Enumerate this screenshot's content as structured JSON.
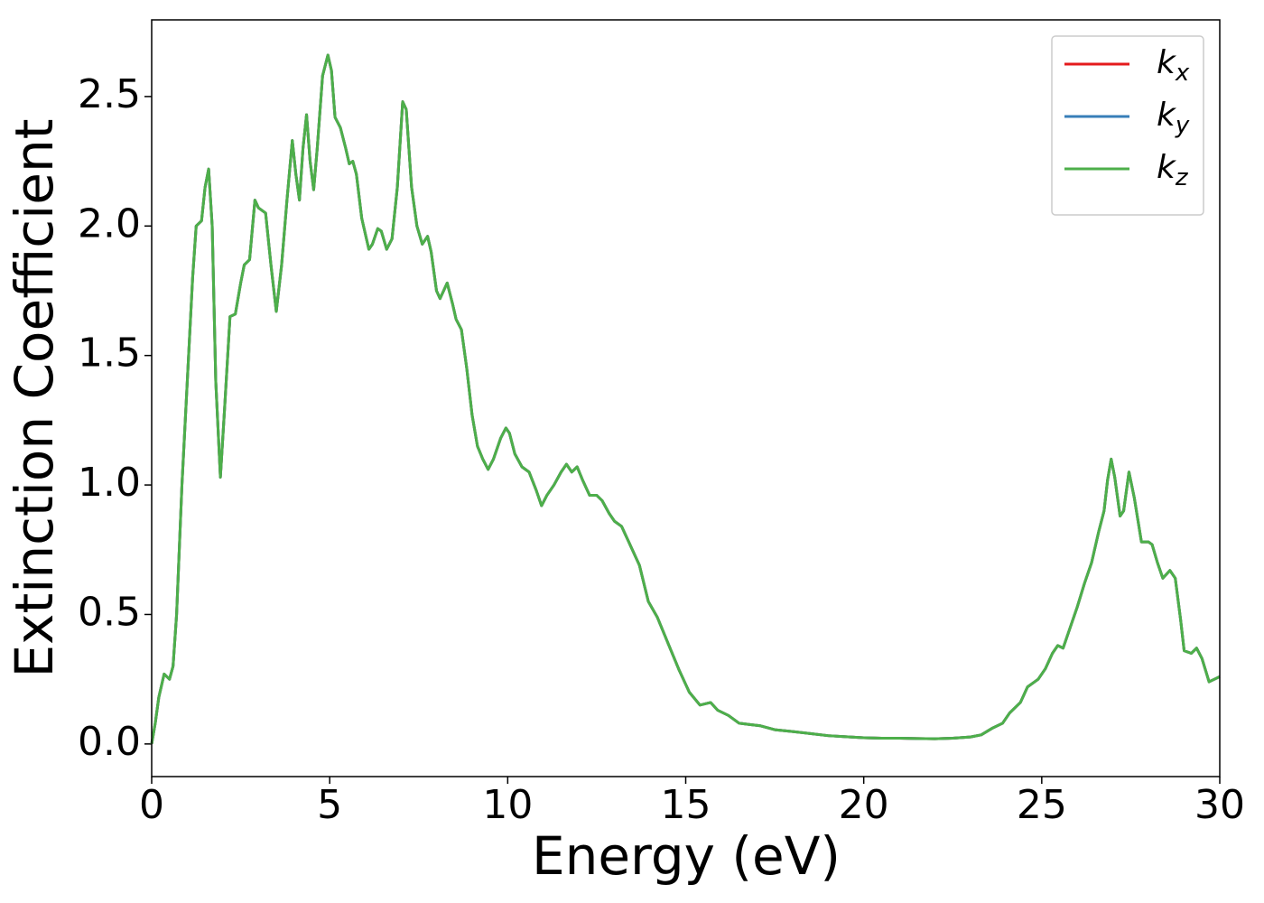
{
  "chart_data": {
    "type": "line",
    "xlabel": "Energy (eV)",
    "ylabel": "Extinction Coefficient",
    "x": [
      0,
      0.1,
      0.2,
      0.35,
      0.5,
      0.6,
      0.7,
      0.85,
      1.0,
      1.15,
      1.25,
      1.4,
      1.5,
      1.6,
      1.7,
      1.8,
      1.93,
      2.05,
      2.2,
      2.35,
      2.5,
      2.6,
      2.75,
      2.9,
      3.0,
      3.2,
      3.35,
      3.5,
      3.65,
      3.8,
      3.95,
      4.05,
      4.15,
      4.25,
      4.35,
      4.45,
      4.55,
      4.65,
      4.8,
      4.95,
      5.05,
      5.15,
      5.3,
      5.45,
      5.55,
      5.65,
      5.75,
      5.9,
      6.1,
      6.2,
      6.35,
      6.45,
      6.6,
      6.75,
      6.9,
      7.05,
      7.15,
      7.3,
      7.45,
      7.6,
      7.75,
      7.85,
      8.0,
      8.1,
      8.3,
      8.45,
      8.55,
      8.7,
      8.85,
      9.0,
      9.15,
      9.3,
      9.45,
      9.6,
      9.8,
      9.95,
      10.05,
      10.2,
      10.4,
      10.6,
      10.8,
      10.95,
      11.1,
      11.3,
      11.5,
      11.65,
      11.8,
      11.95,
      12.1,
      12.3,
      12.5,
      12.65,
      12.85,
      13.0,
      13.2,
      13.4,
      13.7,
      13.95,
      14.2,
      14.5,
      14.8,
      15.1,
      15.4,
      15.7,
      15.9,
      16.2,
      16.5,
      16.8,
      17.1,
      17.5,
      18.0,
      18.5,
      19.0,
      19.5,
      20.0,
      20.5,
      21.0,
      21.5,
      22.0,
      22.5,
      23.0,
      23.3,
      23.6,
      23.9,
      24.1,
      24.4,
      24.6,
      24.9,
      25.1,
      25.3,
      25.45,
      25.6,
      25.8,
      26.0,
      26.2,
      26.4,
      26.6,
      26.75,
      26.85,
      26.95,
      27.05,
      27.2,
      27.3,
      27.45,
      27.6,
      27.8,
      28.0,
      28.1,
      28.25,
      28.4,
      28.6,
      28.75,
      28.9,
      29.0,
      29.2,
      29.35,
      29.5,
      29.7,
      29.85,
      30.0
    ],
    "series": [
      {
        "name": "kx",
        "color": "#e41a1c",
        "values": [
          0.0,
          0.08,
          0.18,
          0.27,
          0.25,
          0.3,
          0.5,
          1.0,
          1.4,
          1.8,
          2.0,
          2.02,
          2.15,
          2.22,
          2.0,
          1.4,
          1.03,
          1.3,
          1.65,
          1.66,
          1.78,
          1.85,
          1.87,
          2.1,
          2.07,
          2.05,
          1.85,
          1.67,
          1.85,
          2.1,
          2.33,
          2.2,
          2.1,
          2.3,
          2.43,
          2.25,
          2.14,
          2.3,
          2.58,
          2.66,
          2.6,
          2.42,
          2.38,
          2.3,
          2.24,
          2.25,
          2.2,
          2.03,
          1.91,
          1.93,
          1.99,
          1.98,
          1.91,
          1.95,
          2.15,
          2.48,
          2.45,
          2.15,
          2.0,
          1.93,
          1.96,
          1.9,
          1.75,
          1.72,
          1.78,
          1.7,
          1.64,
          1.6,
          1.45,
          1.27,
          1.15,
          1.1,
          1.06,
          1.1,
          1.18,
          1.22,
          1.2,
          1.12,
          1.07,
          1.05,
          0.98,
          0.92,
          0.96,
          1.0,
          1.05,
          1.08,
          1.05,
          1.07,
          1.02,
          0.96,
          0.96,
          0.94,
          0.89,
          0.86,
          0.84,
          0.78,
          0.69,
          0.55,
          0.49,
          0.39,
          0.29,
          0.2,
          0.15,
          0.16,
          0.13,
          0.11,
          0.08,
          0.075,
          0.07,
          0.055,
          0.048,
          0.04,
          0.032,
          0.028,
          0.024,
          0.022,
          0.022,
          0.021,
          0.02,
          0.022,
          0.027,
          0.035,
          0.06,
          0.08,
          0.12,
          0.16,
          0.22,
          0.25,
          0.29,
          0.35,
          0.38,
          0.37,
          0.45,
          0.53,
          0.62,
          0.7,
          0.82,
          0.9,
          1.02,
          1.1,
          1.03,
          0.88,
          0.9,
          1.05,
          0.95,
          0.78,
          0.78,
          0.77,
          0.7,
          0.64,
          0.67,
          0.64,
          0.48,
          0.36,
          0.35,
          0.37,
          0.33,
          0.24,
          0.25,
          0.26
        ]
      },
      {
        "name": "ky",
        "color": "#377eb8",
        "values": [
          0.0,
          0.08,
          0.18,
          0.27,
          0.25,
          0.3,
          0.5,
          1.0,
          1.4,
          1.8,
          2.0,
          2.02,
          2.15,
          2.22,
          2.0,
          1.4,
          1.03,
          1.3,
          1.65,
          1.66,
          1.78,
          1.85,
          1.87,
          2.1,
          2.07,
          2.05,
          1.85,
          1.67,
          1.85,
          2.1,
          2.33,
          2.2,
          2.1,
          2.3,
          2.43,
          2.25,
          2.14,
          2.3,
          2.58,
          2.66,
          2.6,
          2.42,
          2.38,
          2.3,
          2.24,
          2.25,
          2.2,
          2.03,
          1.91,
          1.93,
          1.99,
          1.98,
          1.91,
          1.95,
          2.15,
          2.48,
          2.45,
          2.15,
          2.0,
          1.93,
          1.96,
          1.9,
          1.75,
          1.72,
          1.78,
          1.7,
          1.64,
          1.6,
          1.45,
          1.27,
          1.15,
          1.1,
          1.06,
          1.1,
          1.18,
          1.22,
          1.2,
          1.12,
          1.07,
          1.05,
          0.98,
          0.92,
          0.96,
          1.0,
          1.05,
          1.08,
          1.05,
          1.07,
          1.02,
          0.96,
          0.96,
          0.94,
          0.89,
          0.86,
          0.84,
          0.78,
          0.69,
          0.55,
          0.49,
          0.39,
          0.29,
          0.2,
          0.15,
          0.16,
          0.13,
          0.11,
          0.08,
          0.075,
          0.07,
          0.055,
          0.048,
          0.04,
          0.032,
          0.028,
          0.024,
          0.022,
          0.022,
          0.021,
          0.02,
          0.022,
          0.027,
          0.035,
          0.06,
          0.08,
          0.12,
          0.16,
          0.22,
          0.25,
          0.29,
          0.35,
          0.38,
          0.37,
          0.45,
          0.53,
          0.62,
          0.7,
          0.82,
          0.9,
          1.02,
          1.1,
          1.03,
          0.88,
          0.9,
          1.05,
          0.95,
          0.78,
          0.78,
          0.77,
          0.7,
          0.64,
          0.67,
          0.64,
          0.48,
          0.36,
          0.35,
          0.37,
          0.33,
          0.24,
          0.25,
          0.26
        ]
      },
      {
        "name": "kz",
        "color": "#4daf4a",
        "values": [
          0.0,
          0.08,
          0.18,
          0.27,
          0.25,
          0.3,
          0.5,
          1.0,
          1.4,
          1.8,
          2.0,
          2.02,
          2.15,
          2.22,
          2.0,
          1.4,
          1.03,
          1.3,
          1.65,
          1.66,
          1.78,
          1.85,
          1.87,
          2.1,
          2.07,
          2.05,
          1.85,
          1.67,
          1.85,
          2.1,
          2.33,
          2.2,
          2.1,
          2.3,
          2.43,
          2.25,
          2.14,
          2.3,
          2.58,
          2.66,
          2.6,
          2.42,
          2.38,
          2.3,
          2.24,
          2.25,
          2.2,
          2.03,
          1.91,
          1.93,
          1.99,
          1.98,
          1.91,
          1.95,
          2.15,
          2.48,
          2.45,
          2.15,
          2.0,
          1.93,
          1.96,
          1.9,
          1.75,
          1.72,
          1.78,
          1.7,
          1.64,
          1.6,
          1.45,
          1.27,
          1.15,
          1.1,
          1.06,
          1.1,
          1.18,
          1.22,
          1.2,
          1.12,
          1.07,
          1.05,
          0.98,
          0.92,
          0.96,
          1.0,
          1.05,
          1.08,
          1.05,
          1.07,
          1.02,
          0.96,
          0.96,
          0.94,
          0.89,
          0.86,
          0.84,
          0.78,
          0.69,
          0.55,
          0.49,
          0.39,
          0.29,
          0.2,
          0.15,
          0.16,
          0.13,
          0.11,
          0.08,
          0.075,
          0.07,
          0.055,
          0.048,
          0.04,
          0.032,
          0.028,
          0.024,
          0.022,
          0.022,
          0.021,
          0.02,
          0.022,
          0.027,
          0.035,
          0.06,
          0.08,
          0.12,
          0.16,
          0.22,
          0.25,
          0.29,
          0.35,
          0.38,
          0.37,
          0.45,
          0.53,
          0.62,
          0.7,
          0.82,
          0.9,
          1.02,
          1.1,
          1.03,
          0.88,
          0.9,
          1.05,
          0.95,
          0.78,
          0.78,
          0.77,
          0.7,
          0.64,
          0.67,
          0.64,
          0.48,
          0.36,
          0.35,
          0.37,
          0.33,
          0.24,
          0.25,
          0.26
        ]
      }
    ],
    "xlim": [
      0,
      30
    ],
    "xticks": [
      0,
      5,
      10,
      15,
      20,
      25,
      30
    ],
    "ylim": [
      -0.126,
      2.796
    ],
    "yticks": [
      {
        "value": 0,
        "label": "0.0"
      },
      {
        "value": 0.5,
        "label": "0.5"
      },
      {
        "value": 1,
        "label": "1.0"
      },
      {
        "value": 1.5,
        "label": "1.5"
      },
      {
        "value": 2,
        "label": "2.0"
      },
      {
        "value": 2.5,
        "label": "2.5"
      }
    ],
    "legend": "upper right"
  }
}
